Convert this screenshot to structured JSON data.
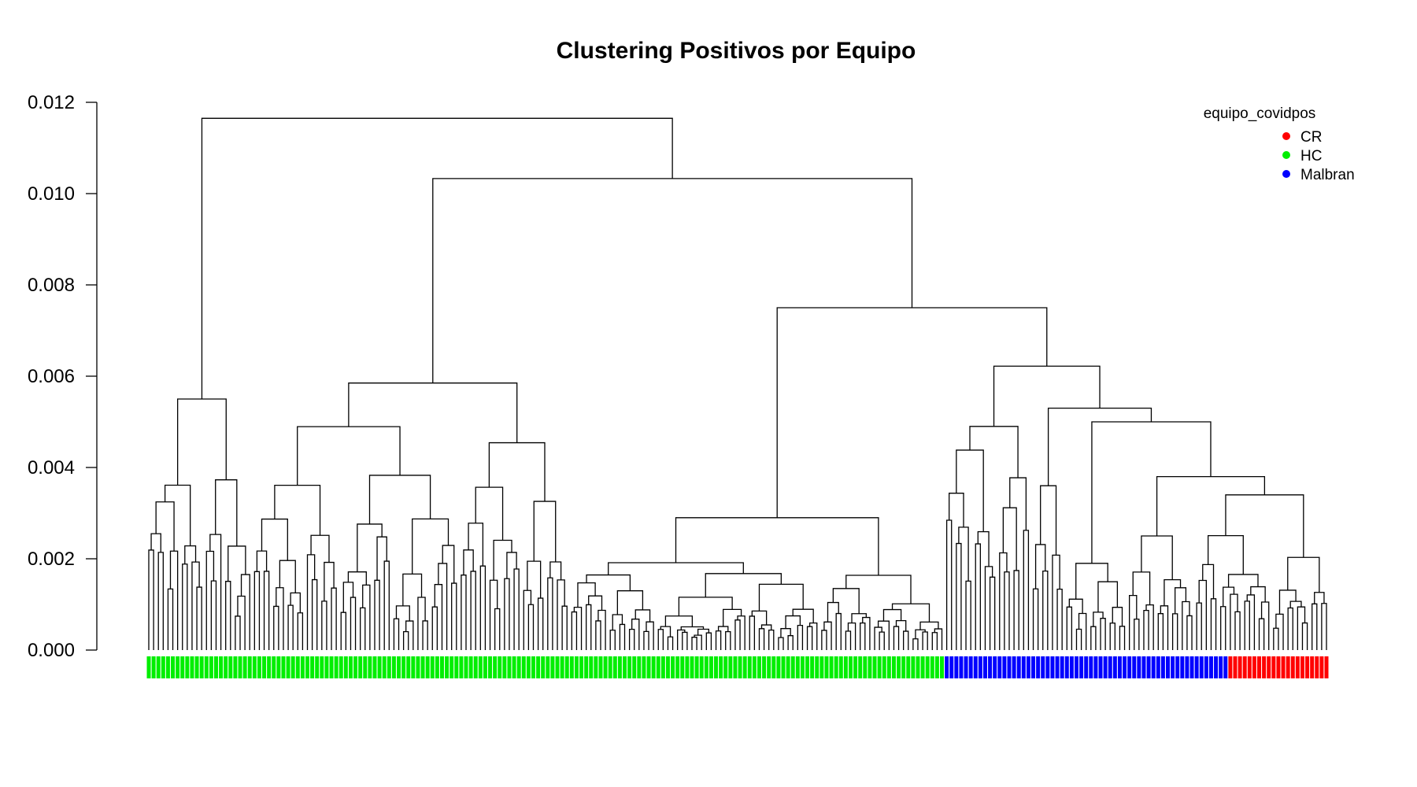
{
  "chart_data": {
    "type": "dendrogram",
    "title": "Clustering Positivos por Equipo",
    "ylim": [
      0,
      0.012
    ],
    "yticks": [
      "0.000",
      "0.002",
      "0.004",
      "0.006",
      "0.008",
      "0.010",
      "0.012"
    ],
    "ytick_values": [
      0,
      0.002,
      0.004,
      0.006,
      0.008,
      0.01,
      0.012
    ],
    "legend": {
      "title": "equipo_covidpos",
      "position": "top-right",
      "entries": [
        {
          "label": "CR",
          "color": "#ff0000"
        },
        {
          "label": "HC",
          "color": "#00ee00"
        },
        {
          "label": "Malbran",
          "color": "#0000ff"
        }
      ]
    },
    "groups": [
      {
        "team": "HC",
        "count": 166
      },
      {
        "team": "Malbran",
        "count": 59
      },
      {
        "team": "CR",
        "count": 21
      }
    ],
    "merges": [
      {
        "height": 0.01165,
        "left": 0.0055,
        "right": 0.01033
      },
      {
        "height": 0.01033,
        "left": 0.00585,
        "right": 0.0075
      },
      {
        "height": 0.0075,
        "left": 0.0029,
        "right": 0.00622
      },
      {
        "height": 0.00622,
        "left": 0.0049,
        "right": 0.0053
      },
      {
        "height": 0.0053,
        "left": 0.0036,
        "right": 0.005
      },
      {
        "height": 0.005,
        "left": 0.0019,
        "right": 0.0038
      },
      {
        "height": 0.0038,
        "left": 0.0025,
        "right": 0.0034
      }
    ]
  }
}
